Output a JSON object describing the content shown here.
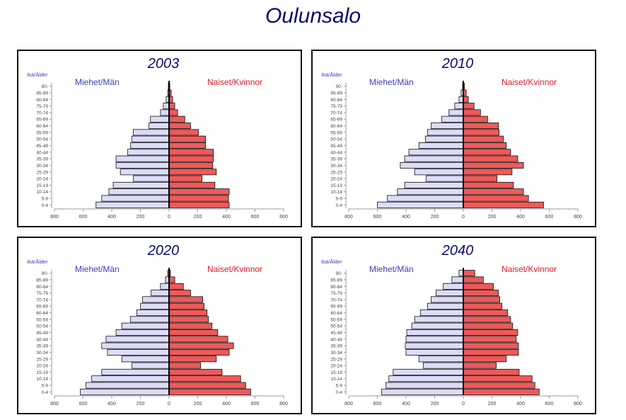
{
  "title": "Oulunsalo",
  "colors": {
    "male_fill": "#dcdcf8",
    "female_fill": "#ee5a5a",
    "male_label": "#3c3cb4",
    "female_label": "#d81c2c",
    "title": "#0b0b6e"
  },
  "chart_data": [
    {
      "type": "bar",
      "orientation": "horizontal-population-pyramid",
      "title": "2003",
      "ylabel": "Ikä/Ålder",
      "categories": [
        "0-4",
        "5-9",
        "10-14",
        "15-19",
        "20-24",
        "25-29",
        "30-34",
        "35-39",
        "40-44",
        "45-49",
        "50-54",
        "55-59",
        "60-64",
        "65-69",
        "70-74",
        "75-79",
        "80-84",
        "85-89",
        "90-"
      ],
      "series": [
        {
          "name": "Miehet/Män",
          "values": [
            510,
            470,
            420,
            390,
            250,
            340,
            370,
            370,
            290,
            270,
            260,
            250,
            140,
            130,
            60,
            40,
            20,
            10,
            5
          ]
        },
        {
          "name": "Naiset/Kvinnor",
          "values": [
            420,
            415,
            420,
            320,
            230,
            330,
            305,
            310,
            310,
            255,
            255,
            205,
            150,
            110,
            60,
            40,
            25,
            15,
            5
          ]
        }
      ],
      "xlim": [
        -800,
        800
      ],
      "xticks": [
        "800",
        "600",
        "400",
        "200",
        "0",
        "200",
        "400",
        "600",
        "800"
      ]
    },
    {
      "type": "bar",
      "orientation": "horizontal-population-pyramid",
      "title": "2010",
      "ylabel": "Ikä/Ålder",
      "categories": [
        "0-4",
        "5-9",
        "10-14",
        "15-19",
        "20-24",
        "25-29",
        "30-34",
        "35-39",
        "40-44",
        "45-49",
        "50-54",
        "55-59",
        "60-64",
        "65-69",
        "70-74",
        "75-79",
        "80-84",
        "85-89",
        "90-"
      ],
      "series": [
        {
          "name": "Miehet/Män",
          "values": [
            600,
            530,
            460,
            410,
            260,
            340,
            440,
            410,
            380,
            310,
            265,
            250,
            225,
            150,
            100,
            60,
            30,
            15,
            5
          ]
        },
        {
          "name": "Naiset/Kvinnor",
          "values": [
            560,
            455,
            420,
            350,
            235,
            340,
            420,
            380,
            330,
            300,
            280,
            250,
            245,
            170,
            120,
            75,
            35,
            20,
            8
          ]
        }
      ],
      "xlim": [
        -800,
        800
      ],
      "xticks": [
        "800",
        "600",
        "400",
        "200",
        "0",
        "200",
        "400",
        "600",
        "800"
      ]
    },
    {
      "type": "bar",
      "orientation": "horizontal-population-pyramid",
      "title": "2020",
      "ylabel": "Ikä/Ålder",
      "categories": [
        "0-4",
        "5-9",
        "10-14",
        "15-19",
        "20-24",
        "25-29",
        "30-34",
        "35-39",
        "40-44",
        "45-49",
        "50-54",
        "55-59",
        "60-64",
        "65-69",
        "70-74",
        "75-79",
        "80-84",
        "85-89",
        "90-"
      ],
      "series": [
        {
          "name": "Miehet/Män",
          "values": [
            620,
            580,
            540,
            470,
            260,
            330,
            430,
            470,
            440,
            370,
            330,
            270,
            225,
            200,
            185,
            125,
            60,
            25,
            10
          ]
        },
        {
          "name": "Naiset/Kvinnor",
          "values": [
            570,
            535,
            500,
            370,
            220,
            330,
            420,
            450,
            410,
            340,
            300,
            275,
            265,
            245,
            235,
            150,
            100,
            40,
            10
          ]
        }
      ],
      "xlim": [
        -800,
        800
      ],
      "xticks": [
        "800",
        "600",
        "400",
        "200",
        "0",
        "200",
        "400",
        "600",
        "800"
      ]
    },
    {
      "type": "bar",
      "orientation": "horizontal-population-pyramid",
      "title": "2040",
      "ylabel": "Ikä/Ålder",
      "categories": [
        "0-4",
        "5-9",
        "10-14",
        "15-19",
        "20-24",
        "25-29",
        "30-34",
        "35-39",
        "40-44",
        "45-49",
        "50-54",
        "55-59",
        "60-64",
        "65-69",
        "70-74",
        "75-79",
        "80-84",
        "85-89",
        "90-"
      ],
      "series": [
        {
          "name": "Miehet/Män",
          "values": [
            570,
            540,
            520,
            490,
            280,
            310,
            400,
            405,
            400,
            395,
            360,
            340,
            300,
            250,
            225,
            190,
            140,
            80,
            30
          ]
        },
        {
          "name": "Naiset/Kvinnor",
          "values": [
            530,
            500,
            480,
            390,
            230,
            300,
            385,
            385,
            370,
            380,
            345,
            330,
            310,
            270,
            255,
            245,
            210,
            140,
            80
          ]
        }
      ],
      "xlim": [
        -800,
        800
      ],
      "xticks": [
        "800",
        "600",
        "400",
        "200",
        "0",
        "200",
        "400",
        "600",
        "800"
      ]
    }
  ]
}
